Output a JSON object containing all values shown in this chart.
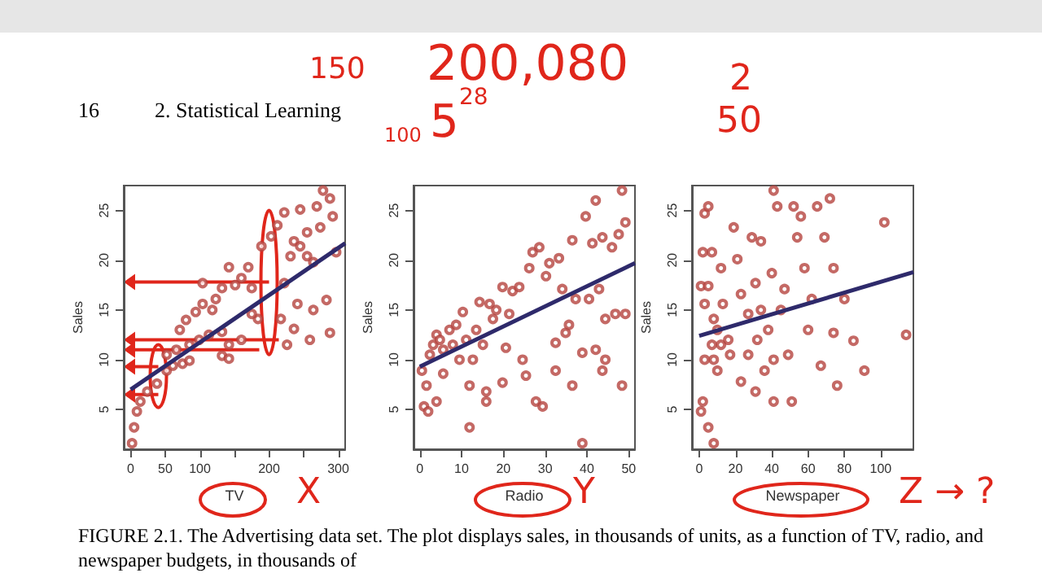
{
  "chart_data": [
    {
      "type": "scatter",
      "xlabel": "TV",
      "ylabel": "Sales",
      "xlim": [
        -10,
        310
      ],
      "ylim": [
        1,
        27.5
      ],
      "xticks": [
        0,
        50,
        100,
        {
          "value": 150,
          "label": null
        },
        200,
        {
          "value": 250,
          "label": null
        },
        300
      ],
      "yticks": [
        5,
        10,
        15,
        20,
        25
      ],
      "grid": false,
      "marker": "circle",
      "annotations": [
        "16",
        "2. Statistical Learning",
        "FIGURE 2.1. The Advertising data set. The plot displays sales, in thousands of units, as a function of TV, radio, and newspaper budgets, in thousands of",
        "150",
        "100",
        "X"
      ],
      "series": [
        {
          "type": "scatter",
          "color": "#b5443f",
          "x": [
            2,
            5,
            9,
            14,
            24,
            38,
            52,
            61,
            75,
            85,
            52,
            66,
            85,
            99,
            113,
            132,
            132,
            142,
            71,
            80,
            94,
            104,
            123,
            132,
            151,
            170,
            142,
            160,
            175,
            189,
            203,
            212,
            222,
            236,
            231,
            245,
            255,
            264,
            278,
            288,
            292,
            297,
            269,
            245,
            283,
            264,
            288,
            259,
            236,
            226,
            241,
            222,
            184,
            175,
            160,
            142,
            118,
            104,
            217,
            274,
            255
          ],
          "values": [
            1.6,
            3.2,
            4.8,
            5.8,
            6.8,
            7.6,
            8.9,
            9.4,
            9.6,
            9.9,
            10.5,
            11,
            11.5,
            12,
            12.5,
            12.8,
            10.4,
            10.1,
            13,
            14,
            14.8,
            15.6,
            16.1,
            17.2,
            17.5,
            19.3,
            19.3,
            18.2,
            17.2,
            21.4,
            22.4,
            23.5,
            24.8,
            21.9,
            20.4,
            21.4,
            20.4,
            19.8,
            27,
            26.2,
            24.4,
            20.8,
            25.4,
            25.1,
            16,
            15,
            12.7,
            12,
            13.1,
            11.5,
            15.6,
            17.7,
            14.1,
            14.6,
            12,
            11.5,
            15,
            17.7,
            14.1,
            23.3,
            22.8
          ]
        },
        {
          "type": "line",
          "color": "#2e2a6b",
          "x": [
            0,
            310
          ],
          "values": [
            7,
            21.7
          ],
          "marker": "none"
        }
      ]
    },
    {
      "type": "scatter",
      "xlabel": "Radio",
      "ylabel": "Sales",
      "xlim": [
        -1.5,
        51.5
      ],
      "ylim": [
        1,
        27.5
      ],
      "xticks": [
        0,
        10,
        20,
        30,
        40,
        50
      ],
      "yticks": [
        5,
        10,
        15,
        20,
        25
      ],
      "grid": false,
      "marker": "circle",
      "annotations": [
        "200,080",
        "5",
        "28",
        "Y"
      ],
      "series": [
        {
          "type": "scatter",
          "color": "#b5443f",
          "x": [
            0.5,
            1,
            2,
            1.6,
            2.4,
            3.2,
            4,
            4.8,
            5.6,
            5.6,
            4,
            7.1,
            7.9,
            8.7,
            9.5,
            10.3,
            11.1,
            11.9,
            11.9,
            12.7,
            13.5,
            14.3,
            15.1,
            15.9,
            15.9,
            16.7,
            17.5,
            18.3,
            19.8,
            19.8,
            20.6,
            21.4,
            22.2,
            23.8,
            24.6,
            25.4,
            26.2,
            27,
            27.8,
            28.6,
            29.4,
            30.2,
            31,
            32.5,
            32.5,
            33.3,
            34.1,
            34.9,
            35.7,
            36.5,
            36.5,
            37.3,
            38.9,
            38.9,
            39.7,
            40.5,
            41.3,
            42.1,
            42.9,
            43.7,
            43.7,
            44.4,
            46,
            46.8,
            47.6,
            48.4,
            48.4,
            49.2,
            49.2,
            42.1,
            44.4
          ],
          "values": [
            8.9,
            5.3,
            4.8,
            7.4,
            10.5,
            11.5,
            12.5,
            12,
            11,
            8.6,
            5.8,
            13,
            11.5,
            13.5,
            10,
            14.8,
            12,
            7.4,
            3.2,
            10,
            13,
            15.8,
            11.5,
            5.8,
            6.8,
            15.6,
            14.1,
            15,
            17.3,
            7.7,
            11.2,
            14.6,
            16.9,
            17.3,
            10,
            8.4,
            19.2,
            20.8,
            5.8,
            21.3,
            5.3,
            18.4,
            19.7,
            11.7,
            8.9,
            20.2,
            17.1,
            12.7,
            13.5,
            22,
            7.4,
            16.1,
            10.7,
            1.6,
            24.4,
            16.1,
            21.7,
            26,
            17.1,
            8.9,
            22.3,
            14.1,
            21.3,
            14.6,
            22.6,
            27,
            7.4,
            23.8,
            14.6,
            11,
            10
          ]
        },
        {
          "type": "line",
          "color": "#2e2a6b",
          "x": [
            0,
            51.5
          ],
          "values": [
            9.3,
            19.7
          ],
          "marker": "none"
        }
      ]
    },
    {
      "type": "scatter",
      "xlabel": "Newspaper",
      "ylabel": "Sales",
      "xlim": [
        -4,
        118
      ],
      "ylim": [
        1,
        27.5
      ],
      "xticks": [
        0,
        20,
        40,
        60,
        80,
        100
      ],
      "yticks": [
        5,
        10,
        15,
        20,
        25
      ],
      "grid": false,
      "marker": "circle",
      "annotations": [
        "2",
        "50",
        "Z → ?"
      ],
      "series": [
        {
          "type": "scatter",
          "color": "#b5443f",
          "x": [
            1,
            2,
            5,
            8,
            3,
            5,
            2,
            7,
            1,
            5,
            3,
            8,
            10,
            7,
            3,
            8,
            10,
            12,
            13,
            16,
            17,
            12,
            19,
            21,
            23,
            23,
            27,
            27,
            29,
            31,
            31,
            32,
            34,
            34,
            36,
            38,
            40,
            41,
            41,
            41,
            43,
            45,
            47,
            49,
            51,
            52,
            54,
            56,
            58,
            60,
            62,
            65,
            67,
            69,
            72,
            74,
            74,
            76,
            80,
            85,
            91,
            102,
            114
          ],
          "values": [
            4.8,
            5.8,
            3.2,
            1.6,
            24.7,
            25.4,
            20.8,
            20.8,
            17.4,
            17.4,
            15.6,
            14.1,
            13,
            11.5,
            10,
            10,
            8.9,
            11.5,
            15.6,
            12,
            10.5,
            19.2,
            23.3,
            20.1,
            16.6,
            7.8,
            10.5,
            14.6,
            22.3,
            17.7,
            6.8,
            12,
            21.9,
            15,
            8.9,
            13,
            18.7,
            27,
            10,
            5.8,
            25.4,
            15,
            17.1,
            10.5,
            5.8,
            25.4,
            22.3,
            24.4,
            19.2,
            13,
            16.1,
            25.4,
            9.4,
            22.3,
            26.2,
            12.7,
            19.2,
            7.4,
            16.1,
            11.9,
            8.9,
            23.8,
            12.5
          ]
        },
        {
          "type": "line",
          "color": "#2e2a6b",
          "x": [
            0,
            118
          ],
          "values": [
            12.4,
            18.8
          ],
          "marker": "none"
        }
      ]
    }
  ]
}
